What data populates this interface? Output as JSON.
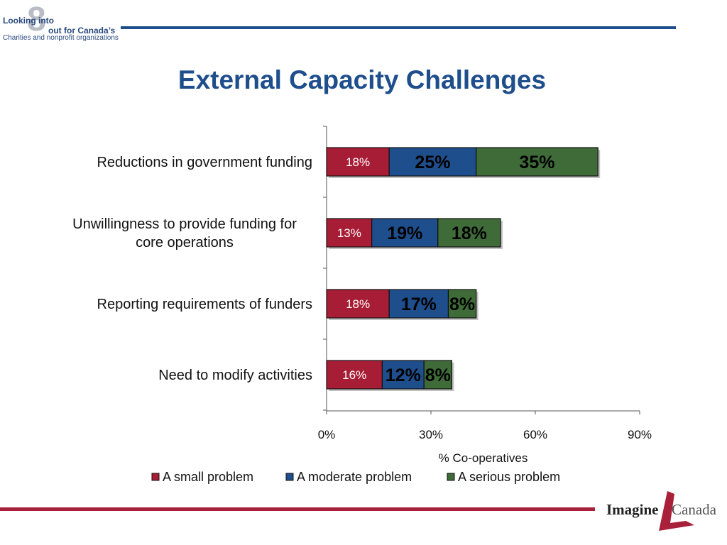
{
  "header": {
    "logo_line1": "Looking into",
    "logo_numeral": "8",
    "logo_line2": "out for Canada’s",
    "logo_line3": "Charities and nonprofit organizations"
  },
  "title": "External Capacity Challenges",
  "footer": {
    "logo_word1": "Imagine",
    "logo_word2": "Canada"
  },
  "colors": {
    "accent_blue": "#1f4e8c",
    "accent_red": "#a8203a",
    "series": [
      "#a71d35",
      "#1f4e8c",
      "#3f6b38"
    ]
  },
  "chart_data": {
    "type": "bar",
    "orientation": "horizontal",
    "stacked": true,
    "categories": [
      "Reductions in government funding",
      "Unwillingness to provide funding for core operations",
      "Reporting requirements of funders",
      "Need to modify activities"
    ],
    "series": [
      {
        "name": "A small problem",
        "values": [
          18,
          13,
          18,
          16
        ],
        "labels": [
          "18%",
          "13%",
          "18%",
          "16%"
        ]
      },
      {
        "name": "A moderate problem",
        "values": [
          25,
          19,
          17,
          12
        ],
        "labels": [
          "25%",
          "19%",
          "17%",
          "12%"
        ]
      },
      {
        "name": "A serious problem",
        "values": [
          35,
          18,
          8,
          8
        ],
        "labels": [
          "35%",
          "18%",
          "8%",
          "8%"
        ]
      }
    ],
    "xlabel": "% Co-operatives",
    "xlim": [
      0,
      90
    ],
    "xticks": [
      "0%",
      "30%",
      "60%",
      "90%"
    ],
    "xtick_values": [
      0,
      30,
      60,
      90
    ],
    "grid": false,
    "legend_position": "bottom"
  }
}
